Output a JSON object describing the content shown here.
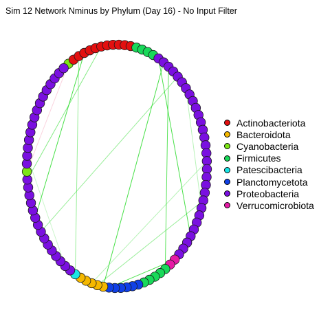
{
  "title": "Sim 12 Network Nminus by Phylum (Day 16) - No Input Filter",
  "chart_data": {
    "type": "network",
    "title": "Sim 12 Network Nminus by Phylum (Day 16) - No Input Filter",
    "layout": "circle",
    "legend_position": "right",
    "phyla": [
      {
        "name": "Actinobacteriota",
        "color": "#e31010"
      },
      {
        "name": "Bacteroidota",
        "color": "#f5b800"
      },
      {
        "name": "Cyanobacteria",
        "color": "#7de616"
      },
      {
        "name": "Firmicutes",
        "color": "#19d95a"
      },
      {
        "name": "Patescibacteria",
        "color": "#18e6e6"
      },
      {
        "name": "Planctomycetota",
        "color": "#1040e6"
      },
      {
        "name": "Proteobacteria",
        "color": "#7a10e0"
      },
      {
        "name": "Verrucomicrobiota",
        "color": "#e61aa5"
      }
    ],
    "node_sequence": [
      {
        "phylum": "Cyanobacteria",
        "count": 1
      },
      {
        "phylum": "Actinobacteriota",
        "count": 11
      },
      {
        "phylum": "Firmicutes",
        "count": 4
      },
      {
        "phylum": "Proteobacteria",
        "count": 30
      },
      {
        "phylum": "Verrucomicrobiota",
        "count": 2
      },
      {
        "phylum": "Firmicutes",
        "count": 5
      },
      {
        "phylum": "Planctomycetota",
        "count": 6
      },
      {
        "phylum": "Bacteroidota",
        "count": 5
      },
      {
        "phylum": "Patescibacteria",
        "count": 1
      },
      {
        "phylum": "Proteobacteria",
        "count": 15
      },
      {
        "phylum": "Cyanobacteria",
        "count": 1
      },
      {
        "phylum": "Proteobacteria",
        "count": 15
      }
    ],
    "edges": [
      {
        "from": 3,
        "to": 74,
        "color": "#33dd33",
        "opacity": 0.9
      },
      {
        "from": 6,
        "to": 79,
        "color": "#33dd33",
        "opacity": 0.6
      },
      {
        "from": 16,
        "to": 42,
        "color": "#33dd33",
        "opacity": 0.9
      },
      {
        "from": 17,
        "to": 59,
        "color": "#33dd33",
        "opacity": 0.9
      },
      {
        "from": 18,
        "to": 48,
        "color": "#33dd33",
        "opacity": 0.8
      },
      {
        "from": 20,
        "to": 72,
        "color": "#33dd33",
        "opacity": 0.5
      },
      {
        "from": 22,
        "to": 38,
        "color": "#33dd33",
        "opacity": 0.35
      },
      {
        "from": 58,
        "to": 46,
        "color": "#33dd33",
        "opacity": 0.85
      },
      {
        "from": 60,
        "to": 37,
        "color": "#33dd33",
        "opacity": 0.5
      },
      {
        "from": 61,
        "to": 32,
        "color": "#33dd33",
        "opacity": 0.35
      },
      {
        "from": 2,
        "to": 64,
        "color": "#33dd33",
        "opacity": 0.5
      },
      {
        "from": 66,
        "to": 82,
        "color": "#33dd33",
        "opacity": 0.25
      },
      {
        "from": 0,
        "to": 80,
        "color": "#f080a0",
        "opacity": 0.35
      }
    ]
  }
}
